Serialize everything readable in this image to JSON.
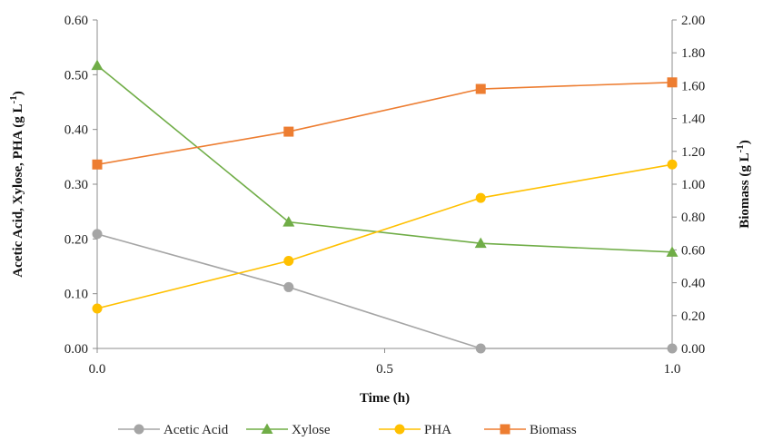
{
  "chart_data": {
    "type": "line",
    "title": "",
    "xlabel": "Time (h)",
    "ylabel_left": "Acetic Acid, Xylose, PHA (g L",
    "ylabel_left_superscript": "-1",
    "ylabel_left_suffix": ")",
    "ylabel_right": "Biomass (g L",
    "ylabel_right_superscript": "-1",
    "ylabel_right_suffix": ")",
    "xlim": [
      0,
      1
    ],
    "ylim_left": [
      0,
      0.6
    ],
    "ylim_right": [
      0,
      2.0
    ],
    "x_ticks": [
      "0.0",
      "0.5",
      "1.0"
    ],
    "x_tick_values": [
      0,
      0.5,
      1.0
    ],
    "y_left_ticks": [
      "0.00",
      "0.10",
      "0.20",
      "0.30",
      "0.40",
      "0.50",
      "0.60"
    ],
    "y_left_tick_values": [
      0,
      0.1,
      0.2,
      0.3,
      0.4,
      0.5,
      0.6
    ],
    "y_right_ticks": [
      "0.00",
      "0.20",
      "0.40",
      "0.60",
      "0.80",
      "1.00",
      "1.20",
      "1.40",
      "1.60",
      "1.80",
      "2.00"
    ],
    "y_right_tick_values": [
      0,
      0.2,
      0.4,
      0.6,
      0.8,
      1.0,
      1.2,
      1.4,
      1.6,
      1.8,
      2.0
    ],
    "grid": false,
    "legend_position": "bottom",
    "series": [
      {
        "name": "Acetic Acid",
        "axis": "left",
        "marker": "circle",
        "color": "#A5A5A5",
        "x": [
          0,
          0.333,
          0.667,
          1.0
        ],
        "values": [
          0.209,
          0.112,
          0.0,
          0.0
        ]
      },
      {
        "name": "Xylose",
        "axis": "left",
        "marker": "triangle",
        "color": "#70AD47",
        "x": [
          0,
          0.333,
          0.667,
          1.0
        ],
        "values": [
          0.517,
          0.231,
          0.192,
          0.176
        ]
      },
      {
        "name": "PHA",
        "axis": "left",
        "marker": "circle",
        "color": "#FFC000",
        "x": [
          0,
          0.333,
          0.667,
          1.0
        ],
        "values": [
          0.073,
          0.16,
          0.275,
          0.336
        ]
      },
      {
        "name": "Biomass",
        "axis": "right",
        "marker": "square",
        "color": "#ED7D31",
        "x": [
          0,
          0.333,
          0.667,
          1.0
        ],
        "values": [
          1.12,
          1.32,
          1.58,
          1.62
        ]
      }
    ]
  }
}
